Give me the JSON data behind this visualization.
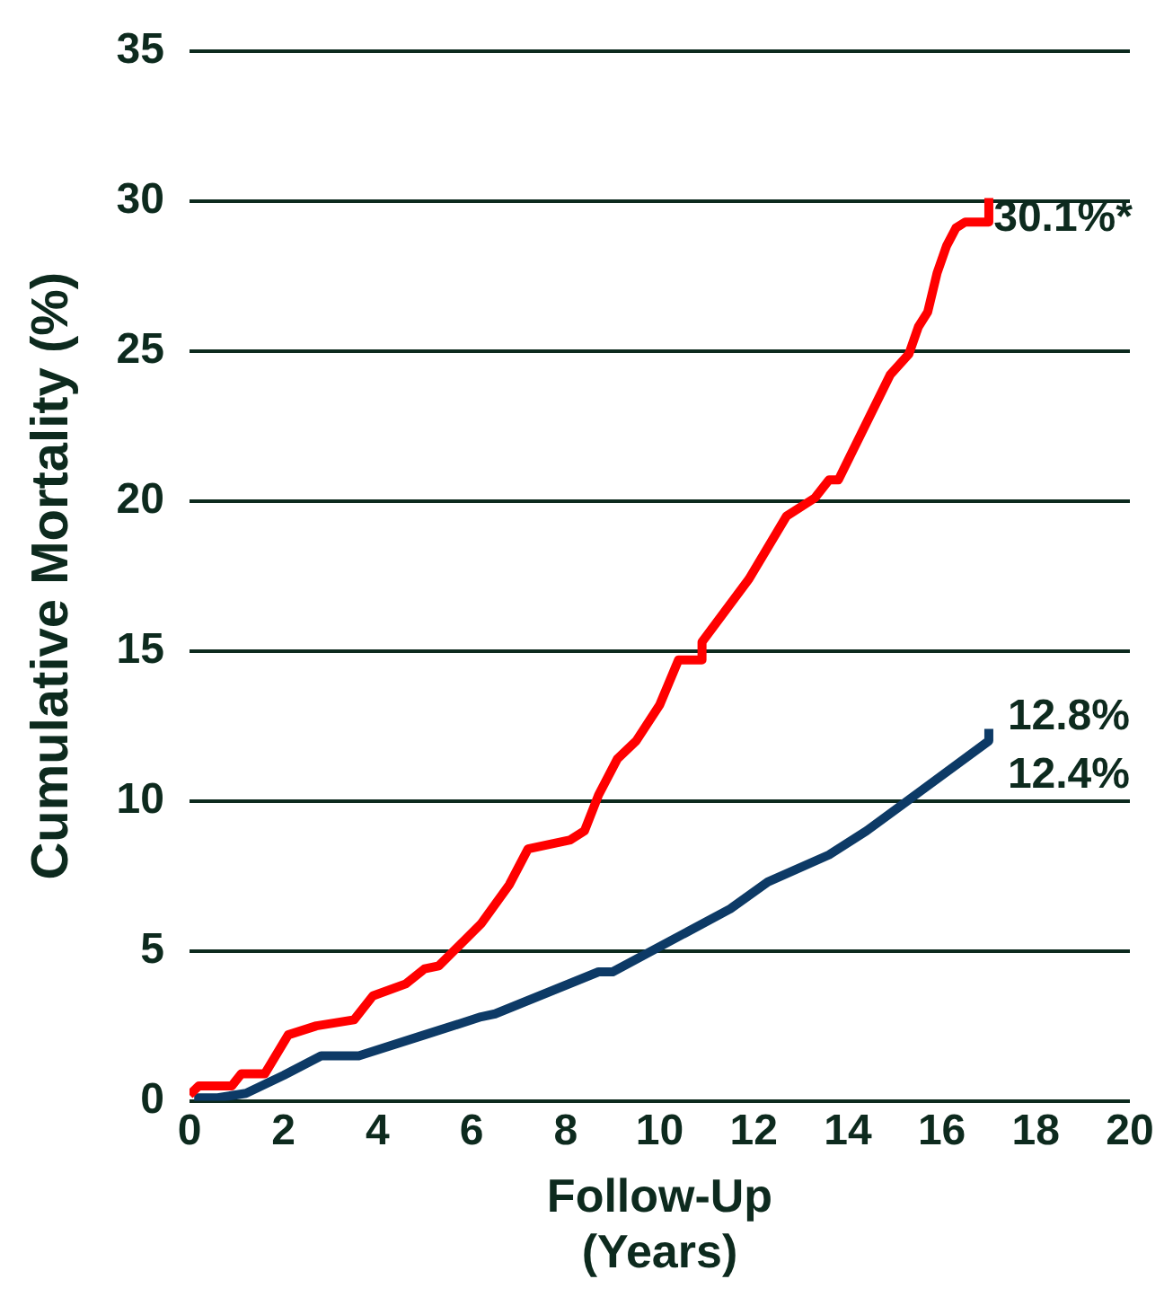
{
  "chart_data": {
    "type": "line",
    "xlabel": "Follow-Up (Years)",
    "ylabel": "Cumulative Mortality (%)",
    "xlim": [
      0,
      20
    ],
    "xticks": [
      0,
      2,
      4,
      6,
      8,
      10,
      12,
      14,
      16,
      18,
      20
    ],
    "ylim": [
      0,
      35
    ],
    "yticks": [
      0,
      5,
      10,
      15,
      20,
      25,
      30,
      35
    ],
    "grid": "y",
    "legend": false,
    "marker": "none",
    "line_style": "solid",
    "series": [
      {
        "color": "#ff0000",
        "x": [
          0,
          0.2,
          0.9,
          1.1,
          1.6,
          2.1,
          2.7,
          3.5,
          3.9,
          4.6,
          5.0,
          5.3,
          6.2,
          6.8,
          7.2,
          8.1,
          8.4,
          8.7,
          9.1,
          9.5,
          10.0,
          10.4,
          10.9,
          10.9,
          11.9,
          12.7,
          13.3,
          13.6,
          13.8,
          14.9,
          15.3,
          15.5,
          15.7,
          15.9,
          16.1,
          16.3,
          16.5,
          17.0,
          17.0
        ],
        "values": [
          0.2,
          0.5,
          0.5,
          0.9,
          0.9,
          2.2,
          2.5,
          2.7,
          3.5,
          3.9,
          4.4,
          4.5,
          5.9,
          7.2,
          8.4,
          8.7,
          9.0,
          10.2,
          11.4,
          12.0,
          13.2,
          14.7,
          14.7,
          15.3,
          17.4,
          19.5,
          20.1,
          20.7,
          20.7,
          24.2,
          24.9,
          25.8,
          26.3,
          27.6,
          28.5,
          29.1,
          29.3,
          29.3,
          30.1
        ]
      },
      {
        "color": "#0d3a66",
        "x": [
          0.1,
          0.6,
          1.2,
          2.0,
          2.8,
          3.6,
          5.0,
          6.2,
          6.5,
          8.7,
          9.0,
          11.5,
          12.3,
          13.6,
          14.4,
          17.0,
          17.0
        ],
        "values": [
          0.1,
          0.1,
          0.25,
          0.85,
          1.5,
          1.5,
          2.2,
          2.8,
          2.9,
          4.3,
          4.3,
          6.4,
          7.3,
          8.2,
          9.0,
          12.0,
          12.4
        ]
      }
    ],
    "annotations": [
      "30.1%*",
      "12.8%",
      "12.4%"
    ]
  }
}
